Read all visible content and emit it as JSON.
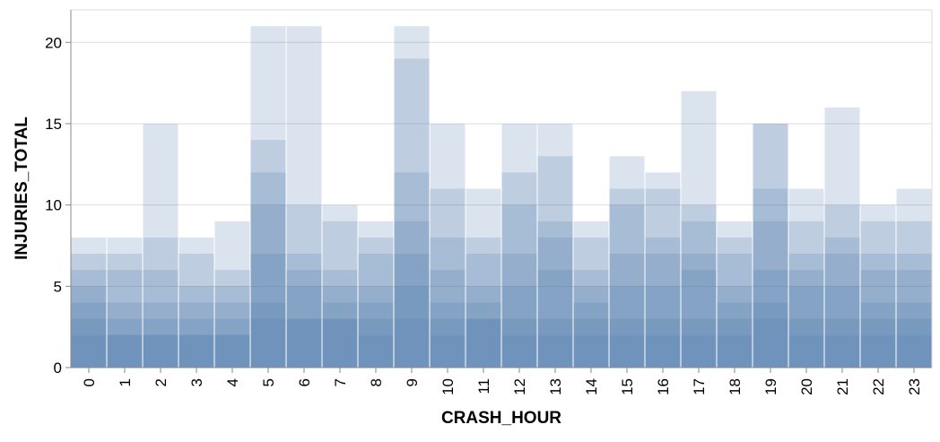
{
  "chart_data": {
    "type": "bar",
    "xlabel": "CRASH_HOUR",
    "ylabel": "INJURIES_TOTAL",
    "ylim": [
      0,
      22
    ],
    "yticks": [
      0,
      5,
      10,
      15,
      20
    ],
    "grid": true,
    "bar_color": "#4c78a8",
    "layer_opacity": 0.2,
    "categories": [
      "0",
      "1",
      "2",
      "3",
      "4",
      "5",
      "6",
      "7",
      "8",
      "9",
      "10",
      "11",
      "12",
      "13",
      "14",
      "15",
      "16",
      "17",
      "18",
      "19",
      "20",
      "21",
      "22",
      "23"
    ],
    "series": [
      {
        "values": [
          8,
          8,
          15,
          8,
          9,
          21,
          21,
          10,
          9,
          21,
          15,
          11,
          15,
          15,
          9,
          13,
          12,
          17,
          9,
          15,
          11,
          16,
          10,
          11
        ]
      },
      {
        "values": [
          7,
          7,
          8,
          7,
          6,
          14,
          10,
          9,
          8,
          19,
          11,
          8,
          12,
          13,
          8,
          11,
          11,
          10,
          8,
          15,
          9,
          10,
          9,
          9
        ]
      },
      {
        "values": [
          6,
          6,
          6,
          5,
          5,
          12,
          7,
          6,
          7,
          12,
          8,
          7,
          10,
          9,
          6,
          10,
          8,
          9,
          7,
          11,
          7,
          8,
          7,
          7
        ]
      },
      {
        "values": [
          5,
          4,
          4,
          4,
          4,
          10,
          6,
          5,
          5,
          9,
          6,
          5,
          7,
          8,
          5,
          7,
          7,
          7,
          5,
          9,
          6,
          7,
          6,
          6
        ]
      },
      {
        "values": [
          4,
          3,
          3,
          3,
          3,
          7,
          5,
          4,
          4,
          7,
          4,
          4,
          5,
          6,
          4,
          5,
          5,
          6,
          4,
          6,
          5,
          5,
          4,
          4
        ]
      },
      {
        "values": [
          3,
          2,
          2,
          2,
          2,
          4,
          3,
          3,
          3,
          5,
          3,
          3,
          3,
          3,
          3,
          3,
          3,
          3,
          3,
          4,
          3,
          3,
          3,
          3
        ]
      },
      {
        "values": [
          2,
          2,
          2,
          2,
          2,
          3,
          3,
          3,
          2,
          3,
          2,
          3,
          2,
          2,
          2,
          2,
          2,
          2,
          2,
          3,
          2,
          2,
          2,
          2
        ]
      }
    ]
  }
}
